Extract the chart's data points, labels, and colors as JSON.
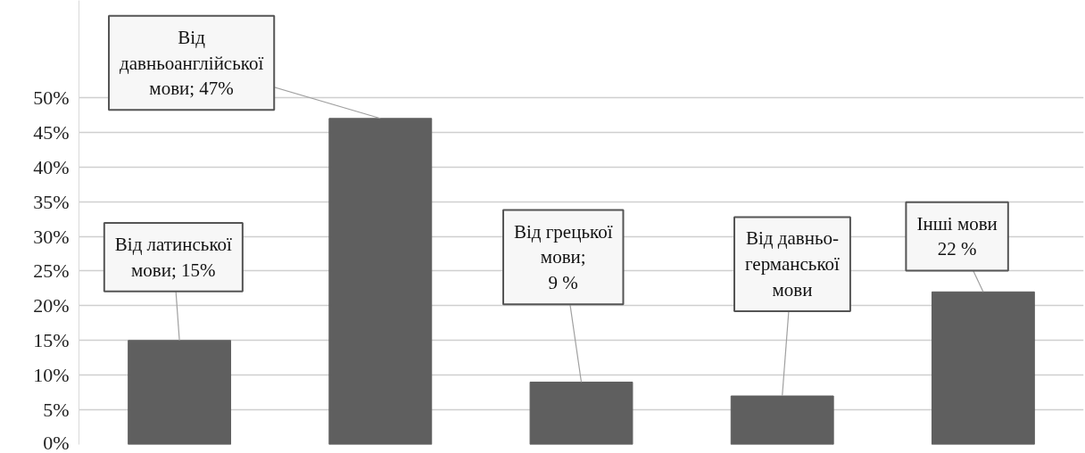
{
  "chart_data": {
    "type": "bar",
    "categories": [
      null,
      null,
      null,
      null,
      null
    ],
    "values": [
      15,
      47,
      9,
      7,
      22
    ],
    "color": "#5f5f5f",
    "value_labels": [
      "Від латинської\nмови; 15%",
      "Від\nдавньоанглійської\nмови; 47%",
      "Від грецької\nмови;\n9 %",
      "Від давньо-\nгерманської\nмови",
      "Інші мови\n22 %"
    ],
    "ylim": [
      0,
      64
    ],
    "yticks": [
      {
        "value": 0,
        "label": "0%"
      },
      {
        "value": 5,
        "label": "5%"
      },
      {
        "value": 10,
        "label": "10%"
      },
      {
        "value": 15,
        "label": "15%"
      },
      {
        "value": 20,
        "label": "20%"
      },
      {
        "value": 25,
        "label": "25%"
      },
      {
        "value": 30,
        "label": "30%"
      },
      {
        "value": 35,
        "label": "35%"
      },
      {
        "value": 40,
        "label": "40%"
      },
      {
        "value": 45,
        "label": "45%"
      },
      {
        "value": 50,
        "label": "50%"
      }
    ],
    "grid": "y"
  }
}
